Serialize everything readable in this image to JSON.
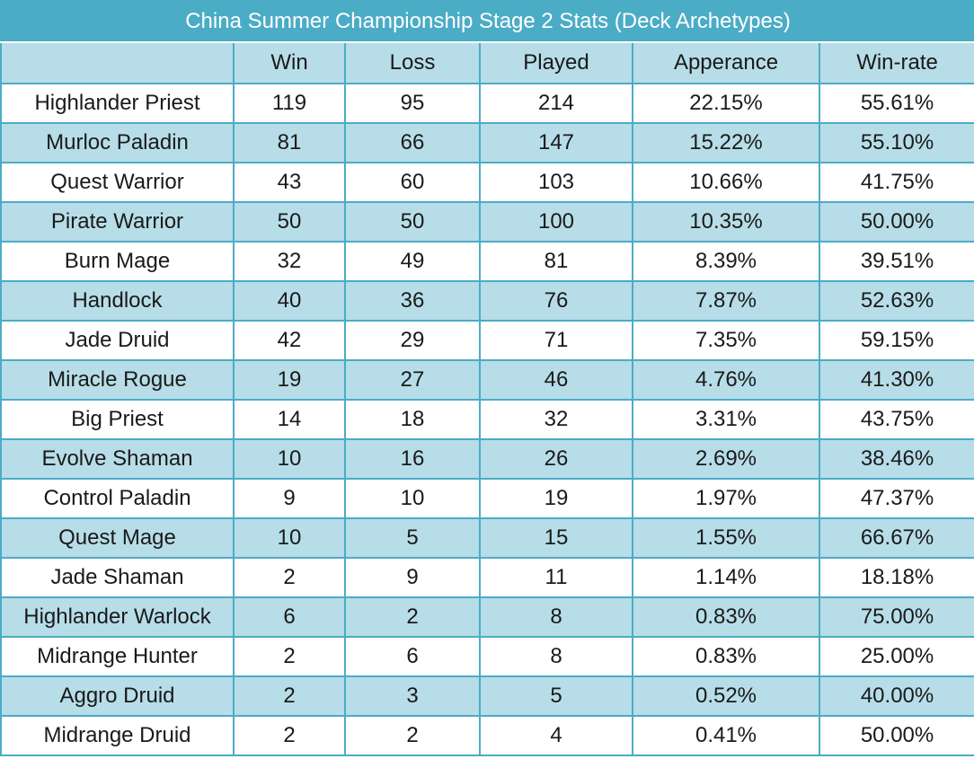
{
  "chart_data": {
    "type": "table",
    "title": "China Summer Championship Stage 2 Stats (Deck Archetypes)",
    "columns": [
      "",
      "Win",
      "Loss",
      "Played",
      "Apperance",
      "Win-rate"
    ],
    "rows": [
      [
        "Highlander Priest",
        "119",
        "95",
        "214",
        "22.15%",
        "55.61%"
      ],
      [
        "Murloc Paladin",
        "81",
        "66",
        "147",
        "15.22%",
        "55.10%"
      ],
      [
        "Quest Warrior",
        "43",
        "60",
        "103",
        "10.66%",
        "41.75%"
      ],
      [
        "Pirate Warrior",
        "50",
        "50",
        "100",
        "10.35%",
        "50.00%"
      ],
      [
        "Burn Mage",
        "32",
        "49",
        "81",
        "8.39%",
        "39.51%"
      ],
      [
        "Handlock",
        "40",
        "36",
        "76",
        "7.87%",
        "52.63%"
      ],
      [
        "Jade Druid",
        "42",
        "29",
        "71",
        "7.35%",
        "59.15%"
      ],
      [
        "Miracle Rogue",
        "19",
        "27",
        "46",
        "4.76%",
        "41.30%"
      ],
      [
        "Big Priest",
        "14",
        "18",
        "32",
        "3.31%",
        "43.75%"
      ],
      [
        "Evolve Shaman",
        "10",
        "16",
        "26",
        "2.69%",
        "38.46%"
      ],
      [
        "Control Paladin",
        "9",
        "10",
        "19",
        "1.97%",
        "47.37%"
      ],
      [
        "Quest Mage",
        "10",
        "5",
        "15",
        "1.55%",
        "66.67%"
      ],
      [
        "Jade Shaman",
        "2",
        "9",
        "11",
        "1.14%",
        "18.18%"
      ],
      [
        "Highlander Warlock",
        "6",
        "2",
        "8",
        "0.83%",
        "75.00%"
      ],
      [
        "Midrange Hunter",
        "2",
        "6",
        "8",
        "0.83%",
        "25.00%"
      ],
      [
        "Aggro Druid",
        "2",
        "3",
        "5",
        "0.52%",
        "40.00%"
      ],
      [
        "Midrange Druid",
        "2",
        "2",
        "4",
        "0.41%",
        "50.00%"
      ]
    ]
  },
  "colors": {
    "title_background": "#4bacc6",
    "title_text": "#ffffff",
    "band_background": "#b7dde8",
    "plain_background": "#ffffff",
    "border": "#4bacc6"
  }
}
